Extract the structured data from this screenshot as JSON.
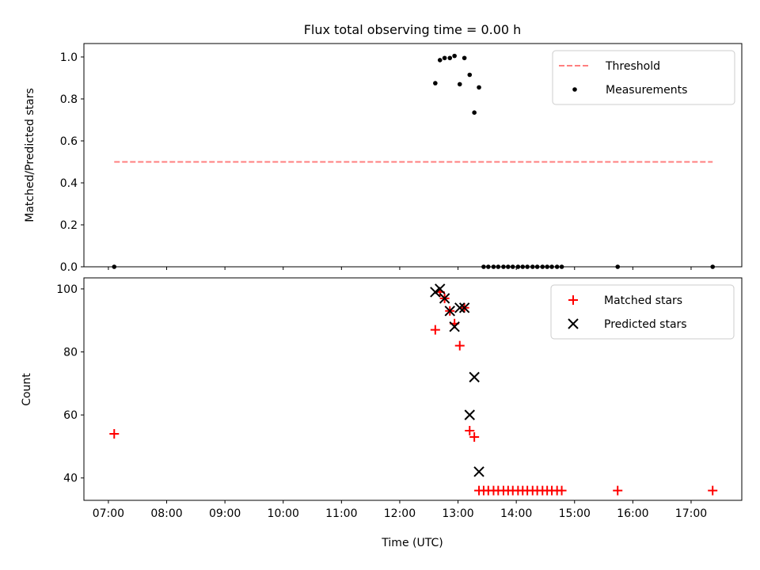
{
  "chart_data": [
    {
      "type": "scatter",
      "title": "Flux total observing time = 0.00 h",
      "xlabel": "",
      "ylabel": "Matched/Predicted stars",
      "xlim": [
        6.58,
        17.87
      ],
      "ylim": [
        0,
        1.064
      ],
      "yticks": [
        0.0,
        0.2,
        0.4,
        0.6,
        0.8,
        1.0
      ],
      "ytick_labels": [
        "0.0",
        "0.2",
        "0.4",
        "0.6",
        "0.8",
        "1.0"
      ],
      "legend_position": "top-right",
      "threshold": {
        "name": "Threshold",
        "value": 0.5,
        "x_range": [
          7.1,
          17.37
        ],
        "color": "#ff7f7f"
      },
      "series": [
        {
          "name": "Measurements",
          "color": "#000000",
          "x": [
            7.1,
            12.61,
            12.69,
            12.77,
            12.86,
            12.94,
            13.03,
            13.11,
            13.2,
            13.28,
            13.36,
            13.44,
            13.52,
            13.61,
            13.69,
            13.78,
            13.86,
            13.94,
            14.03,
            14.11,
            14.19,
            14.28,
            14.36,
            14.45,
            14.53,
            14.61,
            14.7,
            14.78,
            15.74,
            17.37
          ],
          "y": [
            0,
            0.875,
            0.985,
            0.995,
            0.995,
            1.005,
            0.87,
            0.995,
            0.915,
            0.735,
            0.855,
            0,
            0,
            0,
            0,
            0,
            0,
            0,
            0,
            0,
            0,
            0,
            0,
            0,
            0,
            0,
            0,
            0,
            0,
            0
          ]
        }
      ]
    },
    {
      "type": "scatter",
      "title": "",
      "xlabel": "Time (UTC)",
      "ylabel": "Count",
      "xlim": [
        6.58,
        17.87
      ],
      "ylim": [
        32.9,
        103.5
      ],
      "yticks": [
        40,
        60,
        80,
        100
      ],
      "ytick_labels": [
        "40",
        "60",
        "80",
        "100"
      ],
      "xticks": [
        7,
        8,
        9,
        10,
        11,
        12,
        13,
        14,
        15,
        16,
        17
      ],
      "xtick_labels": [
        "07:00",
        "08:00",
        "09:00",
        "10:00",
        "11:00",
        "12:00",
        "13:00",
        "14:00",
        "15:00",
        "16:00",
        "17:00"
      ],
      "legend_position": "top-right",
      "series": [
        {
          "name": "Matched stars",
          "marker": "+",
          "color": "#ff0000",
          "x": [
            7.1,
            12.61,
            12.69,
            12.77,
            12.86,
            12.94,
            13.03,
            13.11,
            13.2,
            13.28,
            13.36,
            13.44,
            13.52,
            13.61,
            13.69,
            13.78,
            13.86,
            13.94,
            14.03,
            14.11,
            14.19,
            14.28,
            14.36,
            14.45,
            14.53,
            14.61,
            14.7,
            14.78,
            15.74,
            17.37
          ],
          "y": [
            54,
            87,
            99,
            97,
            93,
            89,
            82,
            94,
            55,
            53,
            36,
            36,
            36,
            36,
            36,
            36,
            36,
            36,
            36,
            36,
            36,
            36,
            36,
            36,
            36,
            36,
            36,
            36,
            36,
            36
          ]
        },
        {
          "name": "Predicted stars",
          "marker": "x",
          "color": "#000000",
          "x": [
            12.61,
            12.69,
            12.77,
            12.86,
            12.94,
            13.03,
            13.11,
            13.2,
            13.28,
            13.36
          ],
          "y": [
            99,
            100,
            97,
            93,
            88,
            94,
            94,
            60,
            72,
            42
          ]
        }
      ]
    }
  ]
}
